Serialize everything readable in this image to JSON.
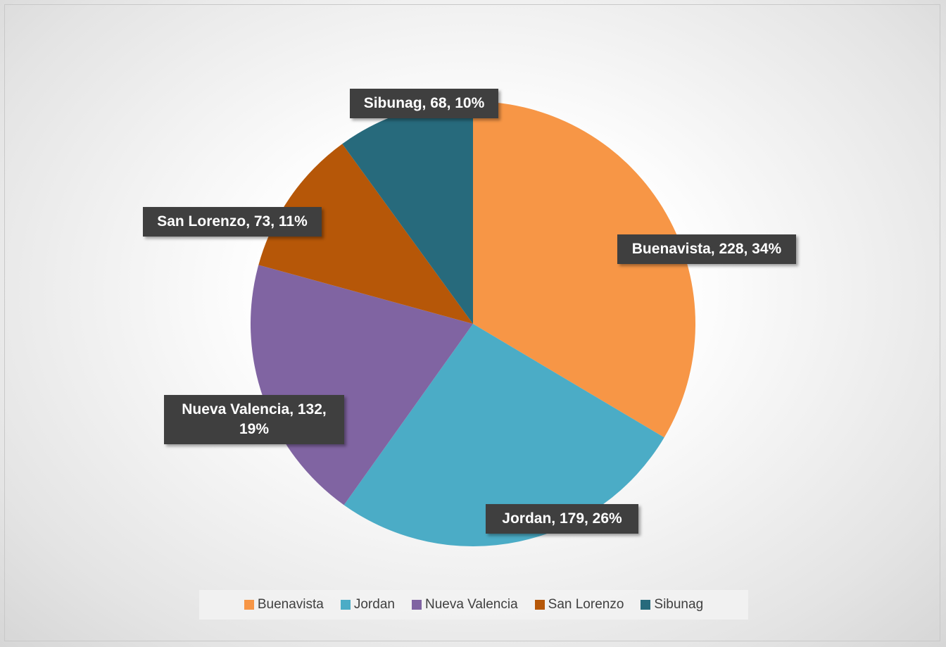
{
  "chart_data": {
    "type": "pie",
    "categories": [
      "Buenavista",
      "Jordan",
      "Nueva Valencia",
      "San Lorenzo",
      "Sibunag"
    ],
    "values": [
      228,
      179,
      132,
      73,
      68
    ],
    "value_labels": [
      "Buenavista, 228, 34%",
      "Jordan, 179, 26%",
      "Nueva Valencia, 132, 19%",
      "San Lorenzo, 73, 11%",
      "Sibunag, 68, 10%"
    ],
    "colors": [
      "#F79646",
      "#4BACC6",
      "#8064A2",
      "#B65708",
      "#276A7C"
    ],
    "legend": "bottom"
  }
}
